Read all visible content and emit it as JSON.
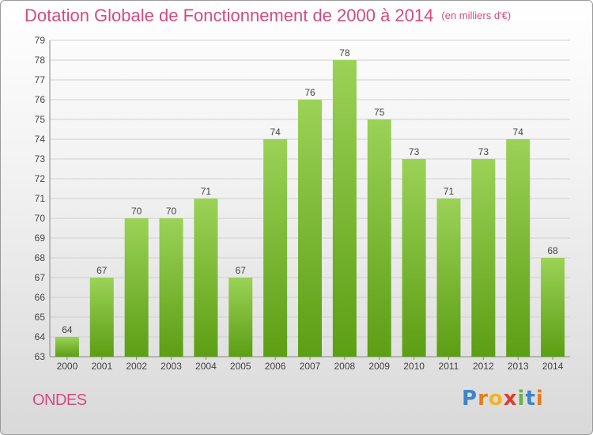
{
  "header": {
    "title": "Dotation Globale de Fonctionnement de 2000 à 2014",
    "unit": "(en milliers d'€)"
  },
  "commune": "ONDES",
  "logo": {
    "text": "Proxiti"
  },
  "colors": {
    "title": "#d44a82",
    "bar_light": "#9bd257",
    "bar_dark": "#5c9e14",
    "grid": "#d0d0d0"
  },
  "chart_data": {
    "type": "bar",
    "title": "Dotation Globale de Fonctionnement de 2000 à 2014",
    "categories": [
      "2000",
      "2001",
      "2002",
      "2003",
      "2004",
      "2005",
      "2006",
      "2007",
      "2008",
      "2009",
      "2010",
      "2011",
      "2012",
      "2013",
      "2014"
    ],
    "values": [
      64,
      67,
      70,
      70,
      71,
      67,
      74,
      76,
      78,
      75,
      73,
      71,
      73,
      74,
      68
    ],
    "data_labels": [
      "64",
      "67",
      "70",
      "70",
      "71",
      "67",
      "74",
      "76",
      "78",
      "75",
      "73",
      "71",
      "73",
      "74",
      "68"
    ],
    "y_ticks": [
      "63",
      "64",
      "65",
      "66",
      "67",
      "68",
      "69",
      "70",
      "71",
      "72",
      "73",
      "74",
      "75",
      "76",
      "77",
      "78",
      "79"
    ],
    "ylim": [
      63,
      79
    ],
    "grid": true,
    "xlabel": "",
    "ylabel": ""
  }
}
